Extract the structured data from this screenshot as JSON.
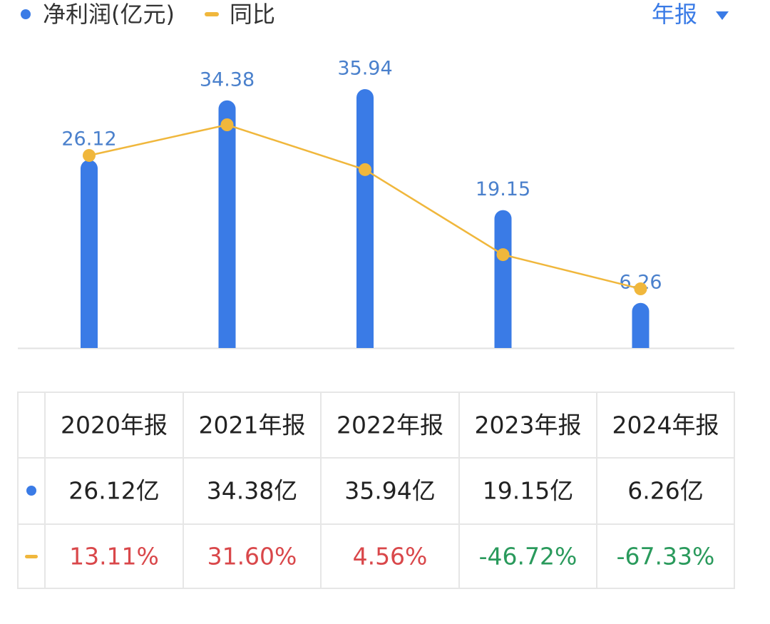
{
  "chart_data": {
    "type": "bar-line",
    "period_selector": "年报",
    "categories": [
      "2020年报",
      "2021年报",
      "2022年报",
      "2023年报",
      "2024年报"
    ],
    "series": [
      {
        "name": "净利润(亿元)",
        "type": "bar",
        "color": "#3a7be6",
        "values": [
          26.12,
          34.38,
          35.94,
          19.15,
          6.26
        ],
        "value_labels": [
          "26.12亿",
          "34.38亿",
          "35.94亿",
          "19.15亿",
          "6.26亿"
        ]
      },
      {
        "name": "同比",
        "type": "line",
        "axis": "y2",
        "color": "#f0b73c",
        "values": [
          13.11,
          31.6,
          4.56,
          -46.72,
          -67.33
        ],
        "value_labels": [
          "13.11%",
          "31.60%",
          "4.56%",
          "-46.72%",
          "-67.33%"
        ]
      }
    ]
  }
}
